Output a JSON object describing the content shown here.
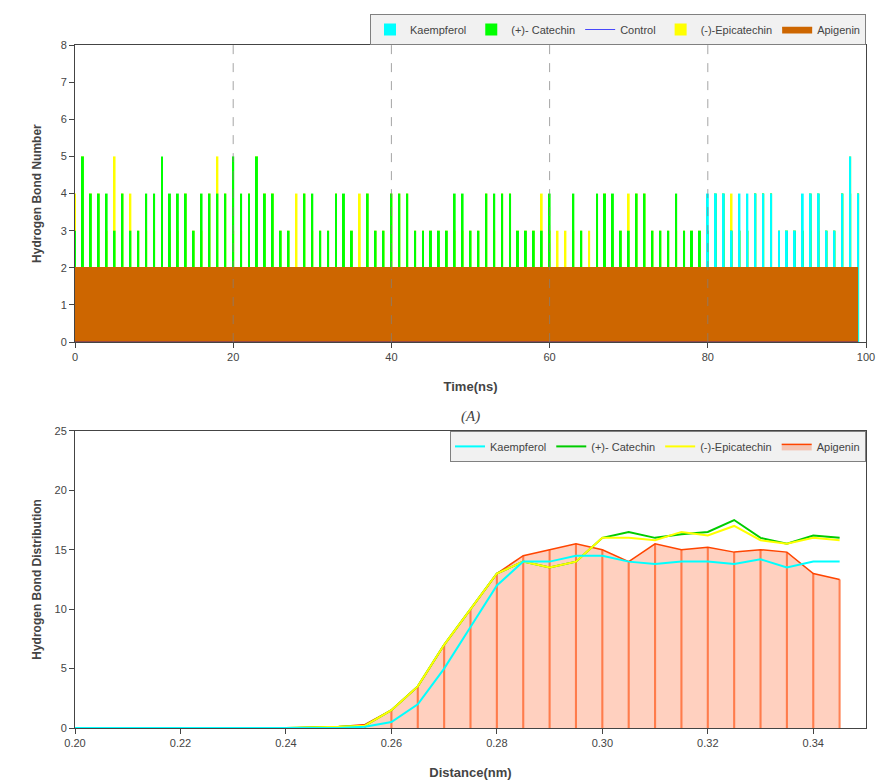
{
  "chart_data": [
    {
      "type": "line",
      "title": "(A)",
      "xlabel": "Time(ns)",
      "ylabel": "Hydrogen Bond Number",
      "x": [
        0,
        1,
        2,
        3,
        4,
        5,
        6,
        7,
        8,
        9,
        10,
        11,
        12,
        13,
        14,
        15,
        16,
        17,
        18,
        19,
        20,
        21,
        22,
        23,
        24,
        25,
        26,
        27,
        28,
        29,
        30,
        31,
        32,
        33,
        34,
        35,
        36,
        37,
        38,
        39,
        40,
        41,
        42,
        43,
        44,
        45,
        46,
        47,
        48,
        49,
        50,
        51,
        52,
        53,
        54,
        55,
        56,
        57,
        58,
        59,
        60,
        61,
        62,
        63,
        64,
        65,
        66,
        67,
        68,
        69,
        70,
        71,
        72,
        73,
        74,
        75,
        76,
        77,
        78,
        79,
        80,
        81,
        82,
        83,
        84,
        85,
        86,
        87,
        88,
        89,
        90,
        91,
        92,
        93,
        94,
        95,
        96,
        97,
        98,
        99
      ],
      "xlim": [
        0,
        100
      ],
      "ylim": [
        0,
        8
      ],
      "xticks": [
        0,
        20,
        40,
        60,
        80,
        100
      ],
      "yticks": [
        0,
        1,
        2,
        3,
        4,
        5,
        6,
        7,
        8
      ],
      "vlines_x": [
        20,
        40,
        60,
        80
      ],
      "grid": false,
      "legend": "upper right",
      "legend_order": [
        "Kaempferol",
        "(+)- Catechin",
        "Control",
        "(-)-Epicatechin",
        "Apigenin"
      ],
      "series": [
        {
          "name": "Apigenin",
          "color": "#CD6600",
          "type": "area",
          "values": [
            2,
            2,
            2,
            2,
            2,
            2,
            2,
            2,
            2,
            2,
            2,
            2,
            2,
            2,
            2,
            2,
            2,
            2,
            2,
            2,
            2,
            2,
            2,
            2,
            2,
            2,
            2,
            2,
            2,
            2,
            2,
            2,
            2,
            2,
            2,
            2,
            2,
            2,
            2,
            2,
            2,
            2,
            2,
            2,
            2,
            2,
            2,
            2,
            2,
            2,
            2,
            2,
            2,
            2,
            2,
            2,
            2,
            2,
            2,
            2,
            2,
            2,
            2,
            2,
            2,
            2,
            2,
            2,
            2,
            2,
            2,
            2,
            2,
            2,
            2,
            2,
            2,
            2,
            2,
            2,
            2,
            2,
            2,
            2,
            2,
            2,
            2,
            2,
            2,
            2,
            2,
            2,
            2,
            2,
            2,
            2,
            2,
            2,
            2,
            2
          ]
        },
        {
          "name": "(-)-Epicatechin",
          "color": "#FFFF00",
          "type": "bar",
          "values": [
            4,
            5,
            4,
            4,
            3,
            5,
            4,
            4,
            3,
            3,
            3,
            3,
            3,
            3,
            4,
            3,
            3,
            4,
            5,
            4,
            3,
            3,
            4,
            5,
            4,
            4,
            3,
            3,
            4,
            4,
            3,
            3,
            3,
            4,
            3,
            3,
            4,
            4,
            3,
            3,
            4,
            4,
            4,
            3,
            3,
            3,
            3,
            3,
            3,
            3,
            3,
            3,
            4,
            3,
            4,
            4,
            3,
            3,
            3,
            4,
            3,
            3,
            3,
            3,
            3,
            3,
            3,
            4,
            3,
            3,
            4,
            4,
            4,
            3,
            3,
            3,
            3,
            3,
            3,
            3,
            3,
            3,
            3,
            4,
            3,
            3,
            4,
            4,
            4,
            3,
            3,
            3,
            3,
            3,
            3,
            3,
            3,
            4,
            5,
            4
          ]
        },
        {
          "name": "(+)- Catechin",
          "color": "#00FF00",
          "type": "bar",
          "values": [
            3,
            5,
            4,
            4,
            4,
            3,
            4,
            3,
            3,
            4,
            4,
            5,
            4,
            4,
            4,
            3,
            4,
            4,
            4,
            4,
            5,
            4,
            4,
            5,
            4,
            4,
            3,
            3,
            2,
            4,
            4,
            3,
            3,
            4,
            4,
            3,
            1,
            4,
            3,
            3,
            4,
            4,
            4,
            3,
            3,
            3,
            3,
            3,
            4,
            4,
            3,
            3,
            4,
            4,
            4,
            4,
            3,
            3,
            3,
            3,
            4,
            2,
            2,
            4,
            3,
            1,
            4,
            4,
            4,
            3,
            3,
            4,
            4,
            3,
            3,
            3,
            4,
            3,
            3,
            3,
            3,
            4,
            4,
            3,
            3,
            3,
            4,
            4,
            4,
            3,
            3,
            3,
            3,
            4,
            4,
            3,
            3,
            4,
            4,
            4
          ]
        },
        {
          "name": "Kaempferol",
          "color": "#00FFFF",
          "type": "bar",
          "values": [
            2,
            2,
            2,
            2,
            2,
            2,
            2,
            2,
            2,
            2,
            2,
            2,
            2,
            2,
            2,
            2,
            2,
            2,
            2,
            2,
            2,
            2,
            2,
            2,
            2,
            2,
            2,
            2,
            2,
            2,
            2,
            2,
            2,
            2,
            2,
            2,
            2,
            2,
            2,
            2,
            2,
            2,
            2,
            2,
            2,
            2,
            2,
            2,
            2,
            2,
            2,
            2,
            2,
            2,
            2,
            2,
            2,
            2,
            2,
            2,
            2,
            2,
            2,
            2,
            2,
            2,
            2,
            2,
            2,
            2,
            2,
            2,
            2,
            2,
            2,
            2,
            2,
            2,
            2,
            2,
            4,
            4,
            4,
            3,
            4,
            4,
            4,
            4,
            4,
            3,
            3,
            3,
            4,
            4,
            4,
            3,
            3,
            4,
            5,
            4
          ]
        },
        {
          "name": "Control",
          "color": "#0000FF",
          "type": "line",
          "values": [
            0,
            0,
            0,
            0,
            0,
            0,
            0,
            0,
            0,
            0,
            0,
            0,
            0,
            0,
            0,
            0,
            0,
            0,
            0,
            0,
            0,
            0,
            0,
            0,
            0,
            0,
            0,
            0,
            0,
            0,
            0,
            0,
            0,
            0,
            0,
            0,
            0,
            0,
            0,
            0,
            0,
            0,
            0,
            0,
            0,
            0,
            0,
            0,
            0,
            0,
            0,
            0,
            0,
            0,
            0,
            0,
            0,
            0,
            0,
            0,
            0,
            0,
            0,
            0,
            0,
            0,
            0,
            0,
            0,
            0,
            0,
            0,
            0,
            0,
            0,
            0,
            0,
            0,
            0,
            0,
            0,
            0,
            0,
            0,
            0,
            0,
            0,
            0,
            0,
            0,
            0,
            0,
            0,
            0,
            0,
            0,
            0,
            0,
            0,
            0
          ]
        }
      ]
    },
    {
      "type": "line",
      "xlabel": "Distance(nm)",
      "ylabel": "Hydrogen Bond Distribution",
      "x": [
        0.2,
        0.21,
        0.22,
        0.23,
        0.24,
        0.25,
        0.255,
        0.26,
        0.265,
        0.27,
        0.275,
        0.28,
        0.285,
        0.29,
        0.295,
        0.3,
        0.305,
        0.31,
        0.315,
        0.32,
        0.325,
        0.33,
        0.335,
        0.34,
        0.345
      ],
      "xlim": [
        0.2,
        0.35
      ],
      "ylim": [
        0,
        25
      ],
      "xticks": [
        {
          "value": 0.2,
          "label": "0.20"
        },
        0.22,
        0.24,
        0.26,
        0.28,
        {
          "value": 0.3,
          "label": "0.30"
        },
        0.32,
        0.34
      ],
      "yticks": [
        0,
        5,
        10,
        15,
        20,
        25
      ],
      "grid": false,
      "legend": "upper right",
      "legend_order": [
        "Kaempferol",
        "(+)- Catechin",
        "(-)-Epicatechin",
        "Apigenin"
      ],
      "series": [
        {
          "name": "Apigenin",
          "color": "#FF4500",
          "type": "area",
          "values": [
            0,
            0,
            0,
            0,
            0,
            0.1,
            0.3,
            1.5,
            3.5,
            7,
            10,
            13,
            14.5,
            15,
            15.5,
            15,
            14,
            15.5,
            15,
            15.2,
            14.8,
            15,
            14.8,
            13,
            12.5
          ]
        },
        {
          "name": "(+)- Catechin",
          "color": "#00CC00",
          "type": "line",
          "values": [
            0,
            0,
            0,
            0,
            0,
            0.1,
            0.2,
            1.5,
            3.5,
            7,
            10,
            13,
            14,
            13.5,
            14,
            16,
            16.5,
            16,
            16.3,
            16.5,
            17.5,
            16,
            15.5,
            16.2,
            16
          ]
        },
        {
          "name": "(-)-Epicatechin",
          "color": "#FFFF00",
          "type": "line",
          "values": [
            0,
            0,
            0,
            0,
            0,
            0.1,
            0.2,
            1.5,
            3.5,
            7,
            10,
            13,
            14,
            13.5,
            14,
            16,
            16,
            15.8,
            16.5,
            16.2,
            17,
            15.8,
            15.5,
            16,
            15.8
          ]
        },
        {
          "name": "Kaempferol",
          "color": "#00FFFF",
          "type": "line",
          "values": [
            0,
            0,
            0,
            0,
            0,
            0,
            0.1,
            0.5,
            2,
            5,
            8.5,
            12,
            14,
            14,
            14.5,
            14.5,
            14,
            13.8,
            14,
            14,
            13.8,
            14.2,
            13.5,
            14,
            14
          ]
        }
      ]
    }
  ]
}
